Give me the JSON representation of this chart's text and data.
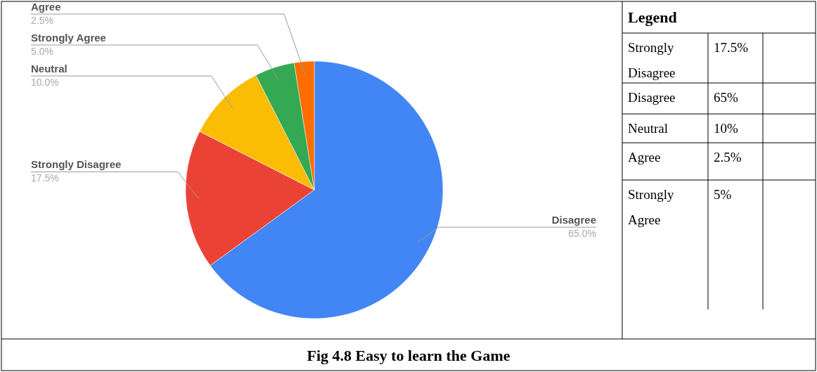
{
  "chart_data": [
    {
      "type": "pie",
      "title": "Fig 4.8 Easy to learn the Game",
      "categories": [
        "Disagree",
        "Strongly Disagree",
        "Neutral",
        "Strongly Agree",
        "Agree"
      ],
      "values": [
        65,
        17.5,
        10,
        5,
        2.5
      ],
      "colors": [
        "#4285f4",
        "#ea4335",
        "#fbbc04",
        "#34a853",
        "#ff6d01"
      ],
      "value_labels": [
        "65.0%",
        "17.5%",
        "10.0%",
        "5.0%",
        "2.5%"
      ]
    },
    {
      "type": "other",
      "title": "Legend",
      "categories": [
        "Strongly Disagree",
        "Disagree",
        "Neutral",
        "Agree",
        "Strongly Agree"
      ],
      "value_labels": [
        "17.5%",
        "65%",
        "10%",
        "2.5%",
        "5%"
      ]
    }
  ]
}
